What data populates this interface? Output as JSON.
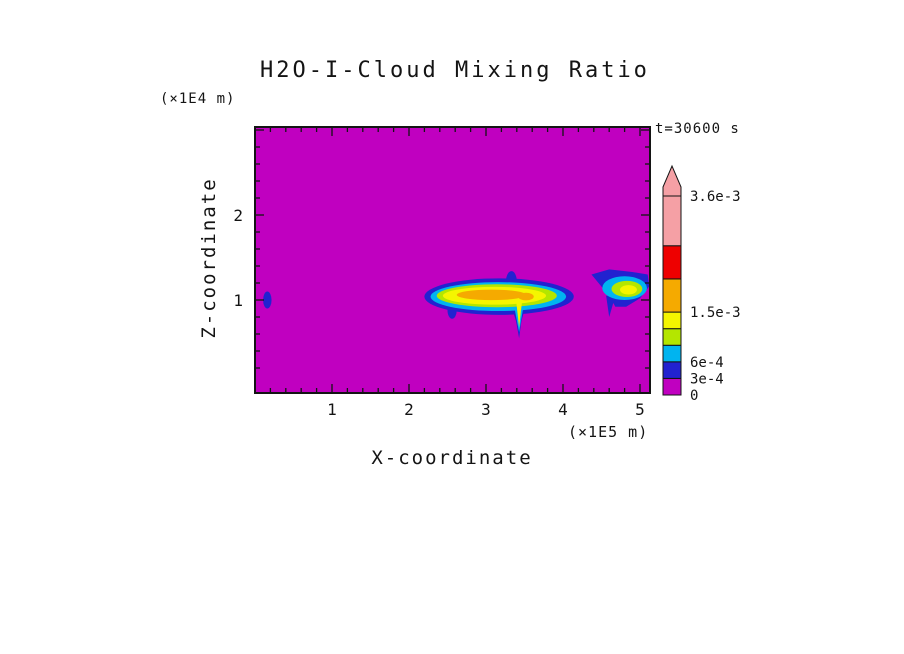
{
  "chart_data": {
    "type": "heatmap",
    "title": "H2O-I-Cloud Mixing Ratio",
    "time_label": "t=30600 s",
    "xlabel": "X-coordinate",
    "x_units": "(×1E5 m)",
    "ylabel": "Z-coordinate",
    "y_units": "(×1E4 m)",
    "xlim": [
      0,
      5.13
    ],
    "ylim": [
      -0.09,
      3.03
    ],
    "x_ticks": [
      1,
      2,
      3,
      4,
      5
    ],
    "y_ticks": [
      1,
      2
    ],
    "x_minor_step": 0.2,
    "y_minor_step": 0.2,
    "grid": false,
    "legend_position": "right",
    "background_color": "magenta",
    "background_value": 0,
    "palette": {
      "magenta": "#C000C0",
      "blue": "#2222D0",
      "cyan": "#00B4F0",
      "green": "#B4E600",
      "yellow": "#F5F500",
      "orange": "#F5AA00",
      "red": "#EE0000",
      "pink": "#F5A0A5"
    },
    "colorbar": {
      "max": 0.0036,
      "arrow_color": "pink",
      "segments": [
        {
          "v0": 0,
          "v1": 0.0003,
          "color": "magenta"
        },
        {
          "v0": 0.0003,
          "v1": 0.0006,
          "color": "blue"
        },
        {
          "v0": 0.0006,
          "v1": 0.0009,
          "color": "cyan"
        },
        {
          "v0": 0.0009,
          "v1": 0.0012,
          "color": "green"
        },
        {
          "v0": 0.0012,
          "v1": 0.0015,
          "color": "yellow"
        },
        {
          "v0": 0.0015,
          "v1": 0.0021,
          "color": "orange"
        },
        {
          "v0": 0.0021,
          "v1": 0.0027,
          "color": "red"
        },
        {
          "v0": 0.0027,
          "v1": 0.0036,
          "color": "pink"
        }
      ],
      "labels": [
        {
          "text": "3.6e-3",
          "value": 0.0036
        },
        {
          "text": "1.5e-3",
          "value": 0.0015
        },
        {
          "text": "6e-4",
          "value": 0.0006
        },
        {
          "text": "3e-4",
          "value": 0.0003
        },
        {
          "text": "0",
          "value": 0
        }
      ]
    },
    "features": [
      {
        "name": "left-cloud-speck",
        "shape": "ellipse",
        "cx": 0.16,
        "cy": 1.0,
        "rx": 0.055,
        "ry": 0.1,
        "color": "blue"
      },
      {
        "name": "main-cloud-blue-base",
        "shape": "ellipse",
        "cx": 3.17,
        "cy": 1.04,
        "rx": 0.97,
        "ry": 0.215,
        "color": "blue"
      },
      {
        "name": "main-cloud-top-bump",
        "shape": "ellipse",
        "cx": 3.33,
        "cy": 1.22,
        "rx": 0.07,
        "ry": 0.12,
        "color": "blue"
      },
      {
        "name": "main-cloud-left-notch",
        "shape": "ellipse",
        "cx": 2.56,
        "cy": 0.88,
        "rx": 0.06,
        "ry": 0.1,
        "color": "blue"
      },
      {
        "name": "main-cloud-fallstreak-blue",
        "shape": "polygon",
        "points": [
          [
            3.3,
            1.02
          ],
          [
            3.54,
            1.02
          ],
          [
            3.46,
            0.75
          ],
          [
            3.43,
            0.55
          ],
          [
            3.39,
            0.75
          ]
        ],
        "color": "blue"
      },
      {
        "name": "main-cloud-cyan",
        "shape": "ellipse",
        "cx": 3.16,
        "cy": 1.04,
        "rx": 0.88,
        "ry": 0.17,
        "color": "cyan"
      },
      {
        "name": "main-cloud-fallstreak-cyan",
        "shape": "polygon",
        "points": [
          [
            3.35,
            1.0
          ],
          [
            3.5,
            1.0
          ],
          [
            3.43,
            0.62
          ]
        ],
        "color": "cyan"
      },
      {
        "name": "main-cloud-green",
        "shape": "ellipse",
        "cx": 3.14,
        "cy": 1.05,
        "rx": 0.78,
        "ry": 0.135,
        "color": "green"
      },
      {
        "name": "main-cloud-yellow",
        "shape": "ellipse",
        "cx": 3.11,
        "cy": 1.05,
        "rx": 0.67,
        "ry": 0.105,
        "color": "yellow"
      },
      {
        "name": "main-cloud-fallstreak-yellow",
        "shape": "polygon",
        "points": [
          [
            3.39,
            1.0
          ],
          [
            3.47,
            1.0
          ],
          [
            3.43,
            0.68
          ]
        ],
        "color": "yellow"
      },
      {
        "name": "main-cloud-orange-core",
        "shape": "ellipse",
        "cx": 3.07,
        "cy": 1.06,
        "rx": 0.45,
        "ry": 0.062,
        "color": "orange"
      },
      {
        "name": "main-cloud-orange-east",
        "shape": "ellipse",
        "cx": 3.52,
        "cy": 1.04,
        "rx": 0.1,
        "ry": 0.045,
        "color": "orange"
      },
      {
        "name": "right-cloud-blue",
        "shape": "polygon",
        "points": [
          [
            4.37,
            1.3
          ],
          [
            4.6,
            1.36
          ],
          [
            4.9,
            1.33
          ],
          [
            5.1,
            1.3
          ],
          [
            5.12,
            1.16
          ],
          [
            5.0,
            1.02
          ],
          [
            4.82,
            0.92
          ],
          [
            4.68,
            0.92
          ],
          [
            4.6,
            1.05
          ],
          [
            4.48,
            1.18
          ]
        ],
        "color": "blue"
      },
      {
        "name": "right-cloud-tail",
        "shape": "polygon",
        "points": [
          [
            4.56,
            1.05
          ],
          [
            4.68,
            1.05
          ],
          [
            4.6,
            0.8
          ]
        ],
        "color": "blue"
      },
      {
        "name": "right-cloud-cyan",
        "shape": "ellipse",
        "cx": 4.8,
        "cy": 1.14,
        "rx": 0.29,
        "ry": 0.14,
        "color": "cyan"
      },
      {
        "name": "right-cloud-green",
        "shape": "ellipse",
        "cx": 4.83,
        "cy": 1.13,
        "rx": 0.2,
        "ry": 0.095,
        "color": "green"
      },
      {
        "name": "right-cloud-yellow",
        "shape": "ellipse",
        "cx": 4.85,
        "cy": 1.12,
        "rx": 0.11,
        "ry": 0.055,
        "color": "yellow"
      }
    ]
  }
}
